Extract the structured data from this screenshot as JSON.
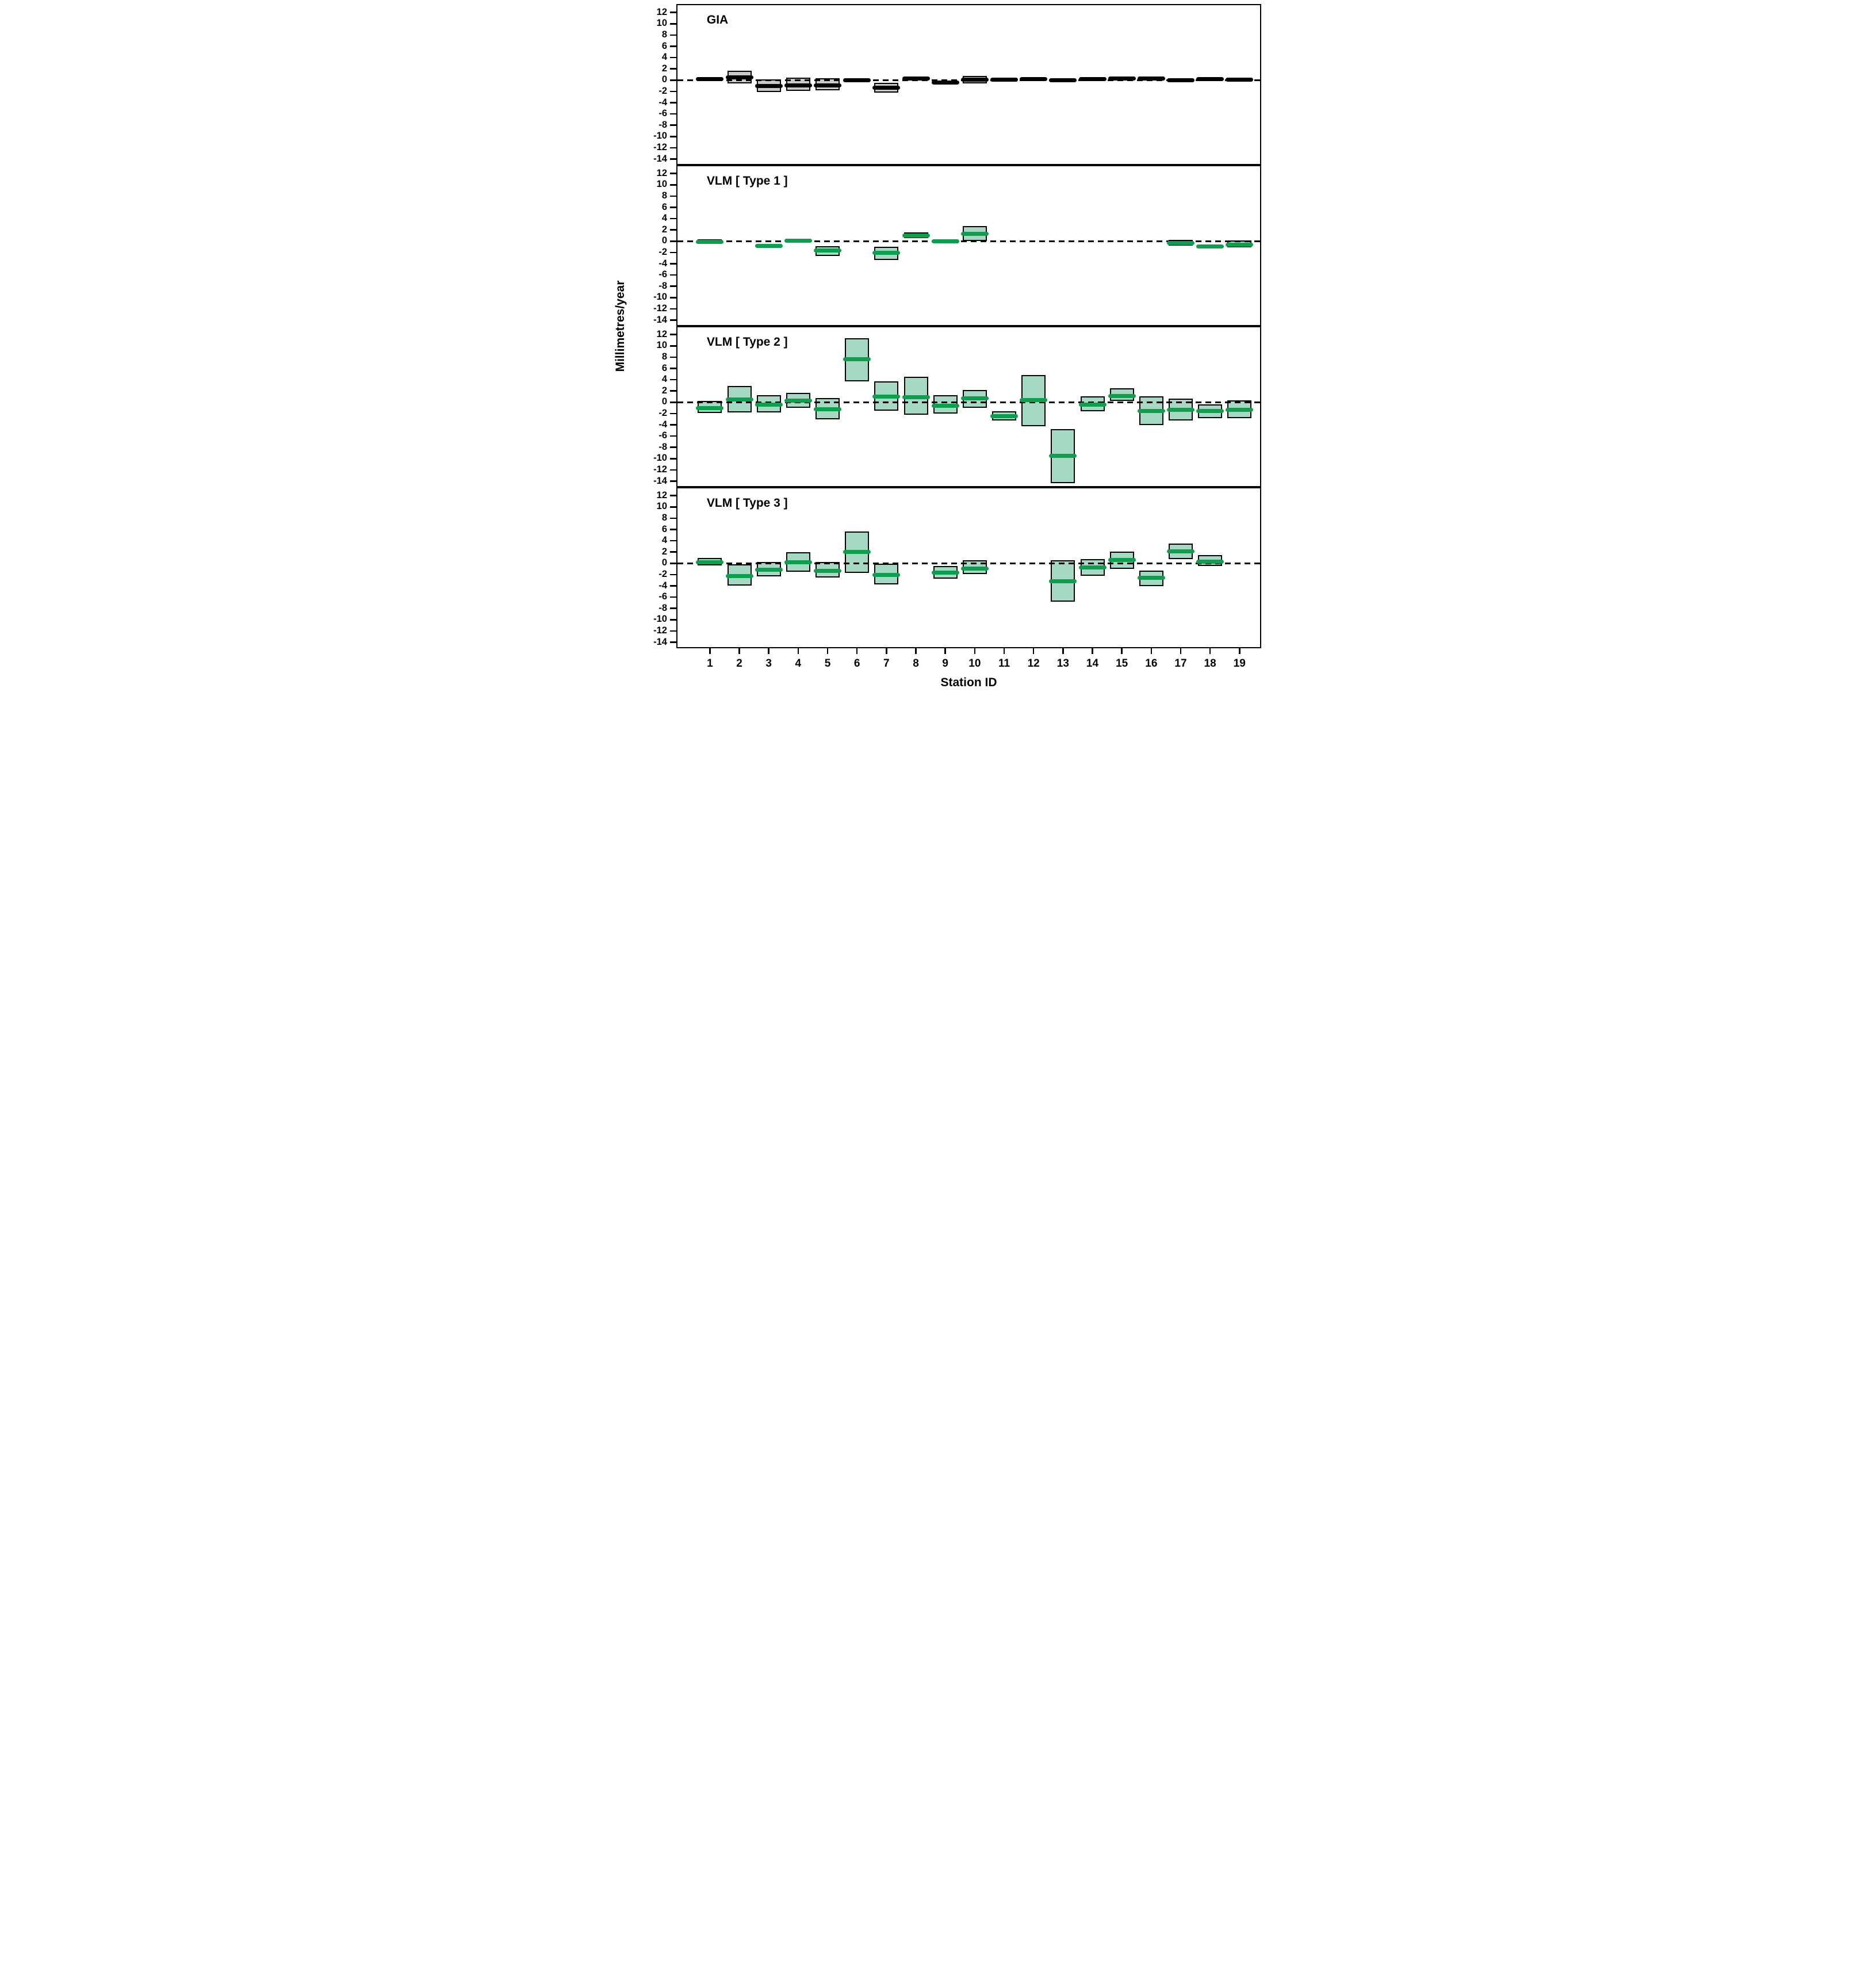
{
  "chart_data": {
    "type": "bar",
    "subtype": "interval-box-with-center-band",
    "ylabel": "Millimetres/year",
    "xlabel": "Station ID",
    "yticks": [
      12,
      10,
      8,
      6,
      4,
      2,
      0,
      -2,
      -4,
      -6,
      -8,
      -10,
      -12,
      -14
    ],
    "stations": [
      1,
      2,
      3,
      4,
      5,
      6,
      7,
      8,
      9,
      10,
      11,
      12,
      13,
      14,
      15,
      16,
      17,
      18,
      19
    ],
    "ylim_top": 13.5,
    "ylim_span": 28.57,
    "grid": "off",
    "zero_line": "dashed",
    "colors": {
      "gia_fill": "#c9c9c9",
      "gia_band": "#000000",
      "vlm_fill": "#a5d9c3",
      "vlm_band": "#0b9e4c",
      "outline": "#000000",
      "background": "#ffffff"
    },
    "panels": [
      {
        "label": "GIA",
        "fill": "#c9c9c9",
        "band": "#000000",
        "values": [
          {
            "station": 1,
            "low": -0.05,
            "center": 0.2,
            "high": 0.4
          },
          {
            "station": 2,
            "low": -0.55,
            "center": 0.5,
            "high": 1.7
          },
          {
            "station": 3,
            "low": -2.1,
            "center": -1.0,
            "high": 0.1
          },
          {
            "station": 4,
            "low": -1.95,
            "center": -0.9,
            "high": 0.4
          },
          {
            "station": 5,
            "low": -1.8,
            "center": -0.95,
            "high": 0.3
          },
          {
            "station": 6,
            "low": -0.3,
            "center": 0.0,
            "high": 0.3
          },
          {
            "station": 7,
            "low": -2.2,
            "center": -1.35,
            "high": -0.45
          },
          {
            "station": 8,
            "low": -0.1,
            "center": 0.25,
            "high": 0.6
          },
          {
            "station": 9,
            "low": -0.8,
            "center": -0.45,
            "high": -0.1
          },
          {
            "station": 10,
            "low": -0.6,
            "center": 0.05,
            "high": 0.7
          },
          {
            "station": 11,
            "low": -0.3,
            "center": 0.05,
            "high": 0.4
          },
          {
            "station": 12,
            "low": -0.2,
            "center": 0.15,
            "high": 0.55
          },
          {
            "station": 13,
            "low": -0.3,
            "center": 0.0,
            "high": 0.3
          },
          {
            "station": 14,
            "low": -0.1,
            "center": 0.2,
            "high": 0.5
          },
          {
            "station": 15,
            "low": 0.0,
            "center": 0.3,
            "high": 0.6
          },
          {
            "station": 16,
            "low": 0.0,
            "center": 0.3,
            "high": 0.6
          },
          {
            "station": 17,
            "low": -0.3,
            "center": 0.0,
            "high": 0.3
          },
          {
            "station": 18,
            "low": -0.1,
            "center": 0.2,
            "high": 0.5
          },
          {
            "station": 19,
            "low": -0.2,
            "center": 0.1,
            "high": 0.4
          }
        ]
      },
      {
        "label": "VLM [ Type 1 ]",
        "fill": "#a5d9c3",
        "band": "#0b9e4c",
        "values": [
          {
            "station": 1,
            "low": -0.45,
            "center": -0.15,
            "high": 0.35
          },
          {
            "station": 3,
            "low": -1.15,
            "center": -0.85,
            "high": -0.5
          },
          {
            "station": 4,
            "low": -0.25,
            "center": 0.1,
            "high": 0.45
          },
          {
            "station": 5,
            "low": -2.6,
            "center": -1.7,
            "high": -0.9
          },
          {
            "station": 7,
            "low": -3.35,
            "center": -2.1,
            "high": -1.0
          },
          {
            "station": 8,
            "low": 0.5,
            "center": 1.0,
            "high": 1.55
          },
          {
            "station": 9,
            "low": -0.4,
            "center": -0.05,
            "high": 0.3
          },
          {
            "station": 10,
            "low": 0.05,
            "center": 1.35,
            "high": 2.7
          },
          {
            "station": 17,
            "low": -0.8,
            "center": -0.3,
            "high": 0.2
          },
          {
            "station": 18,
            "low": -1.2,
            "center": -0.95,
            "high": -0.65
          },
          {
            "station": 19,
            "low": -1.05,
            "center": -0.65,
            "high": 0.1
          }
        ]
      },
      {
        "label": "VLM [ Type 2 ]",
        "fill": "#a5d9c3",
        "band": "#0b9e4c",
        "values": [
          {
            "station": 1,
            "low": -1.95,
            "center": -1.0,
            "high": 0.2
          },
          {
            "station": 2,
            "low": -1.8,
            "center": 0.5,
            "high": 2.85
          },
          {
            "station": 3,
            "low": -1.8,
            "center": -0.4,
            "high": 1.3
          },
          {
            "station": 4,
            "low": -0.95,
            "center": 0.3,
            "high": 1.7
          },
          {
            "station": 5,
            "low": -3.05,
            "center": -1.25,
            "high": 0.7
          },
          {
            "station": 6,
            "low": 3.75,
            "center": 7.6,
            "high": 11.35
          },
          {
            "station": 7,
            "low": -1.55,
            "center": 1.0,
            "high": 3.75
          },
          {
            "station": 8,
            "low": -2.25,
            "center": 0.9,
            "high": 4.55
          },
          {
            "station": 9,
            "low": -2.05,
            "center": -0.65,
            "high": 1.25
          },
          {
            "station": 10,
            "low": -0.95,
            "center": 0.7,
            "high": 2.2
          },
          {
            "station": 11,
            "low": -3.25,
            "center": -2.45,
            "high": -1.65
          },
          {
            "station": 12,
            "low": -4.3,
            "center": 0.4,
            "high": 4.8
          },
          {
            "station": 13,
            "low": -14.35,
            "center": -9.55,
            "high": -4.75
          },
          {
            "station": 14,
            "low": -1.65,
            "center": -0.4,
            "high": 1.05
          },
          {
            "station": 15,
            "low": 0.25,
            "center": 1.1,
            "high": 2.45
          },
          {
            "station": 16,
            "low": -4.0,
            "center": -1.55,
            "high": 1.05
          },
          {
            "station": 17,
            "low": -3.25,
            "center": -1.3,
            "high": 0.6
          },
          {
            "station": 18,
            "low": -2.8,
            "center": -1.6,
            "high": -0.35
          },
          {
            "station": 19,
            "low": -2.8,
            "center": -1.3,
            "high": 0.35
          }
        ]
      },
      {
        "label": "VLM [ Type 3 ]",
        "fill": "#a5d9c3",
        "band": "#0b9e4c",
        "values": [
          {
            "station": 1,
            "low": -0.4,
            "center": 0.2,
            "high": 0.95
          },
          {
            "station": 2,
            "low": -3.95,
            "center": -2.3,
            "high": -0.2
          },
          {
            "station": 3,
            "low": -2.3,
            "center": -1.15,
            "high": 0.2
          },
          {
            "station": 4,
            "low": -1.45,
            "center": 0.2,
            "high": 2.0
          },
          {
            "station": 5,
            "low": -2.5,
            "center": -1.3,
            "high": 0.2
          },
          {
            "station": 6,
            "low": -1.7,
            "center": 2.0,
            "high": 5.6
          },
          {
            "station": 7,
            "low": -3.7,
            "center": -2.1,
            "high": -0.1
          },
          {
            "station": 9,
            "low": -2.75,
            "center": -1.7,
            "high": -0.45
          },
          {
            "station": 10,
            "low": -1.9,
            "center": -0.95,
            "high": 0.55
          },
          {
            "station": 13,
            "low": -6.8,
            "center": -3.15,
            "high": 0.5
          },
          {
            "station": 14,
            "low": -2.2,
            "center": -0.75,
            "high": 0.7
          },
          {
            "station": 15,
            "low": -1.0,
            "center": 0.6,
            "high": 2.1
          },
          {
            "station": 16,
            "low": -4.0,
            "center": -2.6,
            "high": -1.3
          },
          {
            "station": 17,
            "low": 0.7,
            "center": 2.1,
            "high": 3.55
          },
          {
            "station": 18,
            "low": -0.5,
            "center": 0.3,
            "high": 1.45
          }
        ]
      }
    ]
  }
}
